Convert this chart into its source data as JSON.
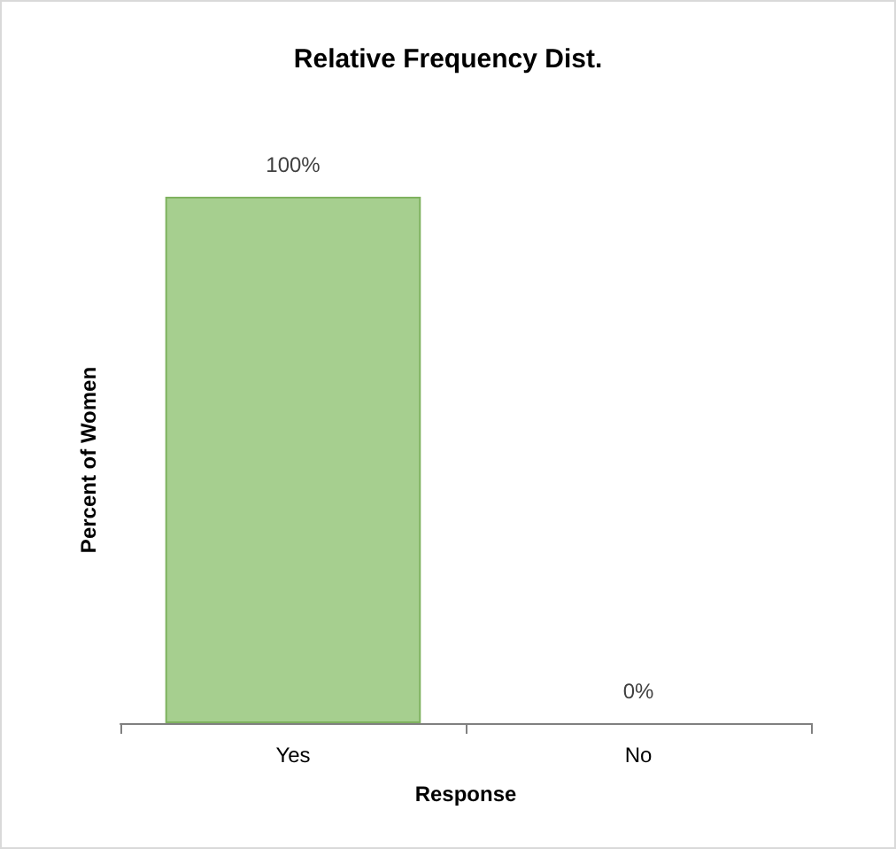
{
  "chart_data": {
    "type": "bar",
    "title": "Relative Frequency Dist.",
    "xlabel": "Response",
    "ylabel": "Percent of Women",
    "categories": [
      "Yes",
      "No"
    ],
    "values": [
      100,
      0
    ],
    "value_labels": [
      "100%",
      "0%"
    ],
    "color": "#a6cf8f",
    "grid": false,
    "tick_labels": "x"
  }
}
